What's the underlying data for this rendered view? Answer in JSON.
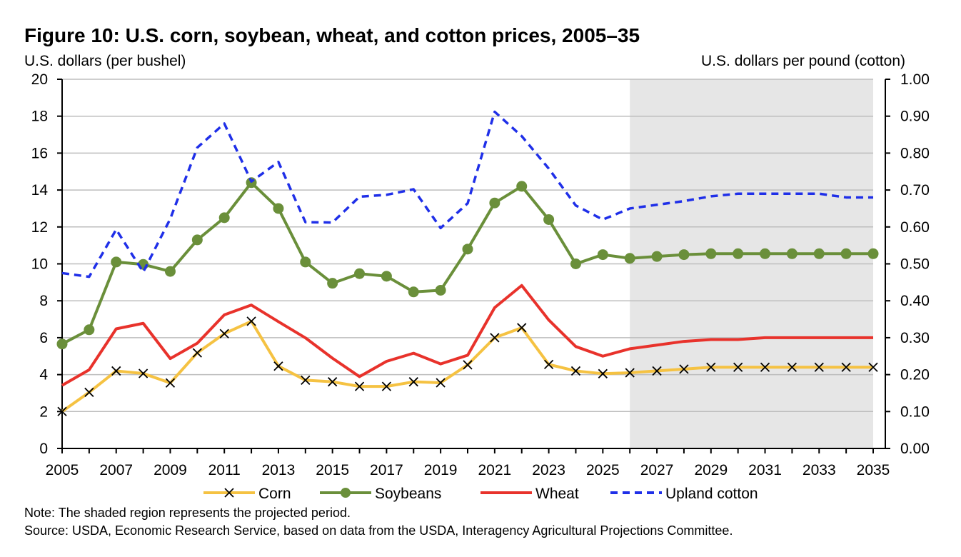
{
  "chart_data": {
    "type": "line",
    "title": "Figure 10: U.S. corn, soybean, wheat, and cotton prices, 2005–35",
    "ylabel_left": "U.S. dollars (per bushel)",
    "ylabel_right": "U.S. dollars per pound (cotton)",
    "note": "Note: The shaded region represents the projected period.",
    "source": "Source: USDA, Economic Research Service, based on data from the USDA, Interagency Agricultural Projections Committee.",
    "x": [
      2005,
      2006,
      2007,
      2008,
      2009,
      2010,
      2011,
      2012,
      2013,
      2014,
      2015,
      2016,
      2017,
      2018,
      2019,
      2020,
      2021,
      2022,
      2023,
      2024,
      2025,
      2026,
      2027,
      2028,
      2029,
      2030,
      2031,
      2032,
      2033,
      2034,
      2035
    ],
    "x_tick_labels": [
      "2005",
      "2007",
      "2009",
      "2011",
      "2013",
      "2015",
      "2017",
      "2019",
      "2021",
      "2023",
      "2025",
      "2027",
      "2029",
      "2031",
      "2033",
      "2035"
    ],
    "xlim": [
      2005,
      2035
    ],
    "ylim_left": [
      0,
      20
    ],
    "ylim_right": [
      0,
      1.0
    ],
    "y_left_ticks": [
      "0",
      "2",
      "4",
      "6",
      "8",
      "10",
      "12",
      "14",
      "16",
      "18",
      "20"
    ],
    "y_right_ticks": [
      "0.00",
      "0.10",
      "0.20",
      "0.30",
      "0.40",
      "0.50",
      "0.60",
      "0.70",
      "0.80",
      "0.90",
      "1.00"
    ],
    "projected_period": [
      2026,
      2035
    ],
    "grid": true,
    "legend_position": "bottom",
    "series": [
      {
        "name": "Corn",
        "axis": "left",
        "color": "#F5C242",
        "marker": "x",
        "values": [
          2.0,
          3.04,
          4.2,
          4.06,
          3.55,
          5.18,
          6.22,
          6.89,
          4.46,
          3.7,
          3.61,
          3.36,
          3.36,
          3.61,
          3.56,
          4.53,
          6.0,
          6.54,
          4.55,
          4.2,
          4.05,
          4.1,
          4.2,
          4.3,
          4.4,
          4.4,
          4.4,
          4.4,
          4.4,
          4.4,
          4.4
        ]
      },
      {
        "name": "Soybeans",
        "axis": "left",
        "color": "#6A8F3A",
        "marker": "circle",
        "values": [
          5.66,
          6.43,
          10.1,
          9.97,
          9.59,
          11.3,
          12.5,
          14.4,
          13.0,
          10.1,
          8.95,
          9.47,
          9.33,
          8.48,
          8.57,
          10.8,
          13.3,
          14.2,
          12.4,
          10.0,
          10.5,
          10.3,
          10.4,
          10.5,
          10.55,
          10.55,
          10.55,
          10.55,
          10.55,
          10.55,
          10.55
        ]
      },
      {
        "name": "Wheat",
        "axis": "left",
        "color": "#E8322B",
        "marker": "none",
        "values": [
          3.42,
          4.26,
          6.48,
          6.78,
          4.87,
          5.7,
          7.24,
          7.77,
          6.87,
          5.99,
          4.89,
          3.89,
          4.72,
          5.16,
          4.58,
          5.05,
          7.63,
          8.83,
          6.96,
          5.52,
          5.0,
          5.4,
          5.6,
          5.8,
          5.9,
          5.9,
          6.0,
          6.0,
          6.0,
          6.0,
          6.0
        ]
      },
      {
        "name": "Upland cotton",
        "axis": "right",
        "color": "#1F2FE8",
        "marker": "none",
        "dashed": true,
        "values": [
          0.475,
          0.465,
          0.593,
          0.478,
          0.622,
          0.815,
          0.88,
          0.723,
          0.776,
          0.613,
          0.612,
          0.682,
          0.687,
          0.702,
          0.597,
          0.664,
          0.912,
          0.846,
          0.758,
          0.658,
          0.62,
          0.65,
          0.66,
          0.67,
          0.683,
          0.69,
          0.69,
          0.69,
          0.69,
          0.68,
          0.68
        ]
      }
    ]
  }
}
